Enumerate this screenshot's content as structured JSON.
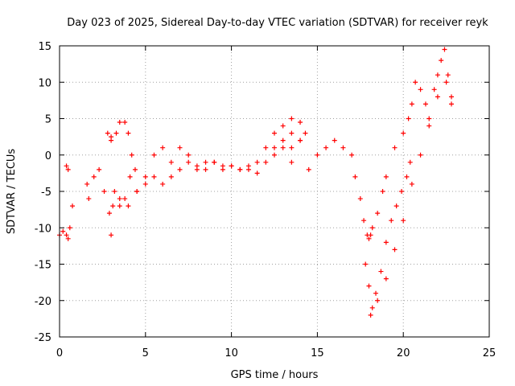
{
  "chart_data": {
    "type": "scatter",
    "title": "Day 023 of 2025, Sidereal Day-to-day VTEC variation (SDTVAR) for receiver reyk",
    "xlabel": "GPS time / hours",
    "ylabel": "SDTVAR / TECUs",
    "xlim": [
      0,
      25
    ],
    "ylim": [
      -25,
      15
    ],
    "x_ticks": [
      0,
      5,
      10,
      15,
      20,
      25
    ],
    "y_ticks": [
      -25,
      -20,
      -15,
      -10,
      -5,
      0,
      5,
      10,
      15
    ],
    "grid": true,
    "legend": "none",
    "marker": "+",
    "series": [
      {
        "name": "SDTVAR",
        "color": "#ff0000",
        "x": [
          0.0,
          0.2,
          0.4,
          0.5,
          0.6,
          0.75,
          0.4,
          0.5,
          1.6,
          1.7,
          2.0,
          2.3,
          2.6,
          2.9,
          3.0,
          3.1,
          3.0,
          2.8,
          3.0,
          3.3,
          3.5,
          3.8,
          4.0,
          4.2,
          4.4,
          4.1,
          3.8,
          3.5,
          3.2,
          3.5,
          4.0,
          4.5,
          5.0,
          5.5,
          6.0,
          6.5,
          7.0,
          7.5,
          8.0,
          8.5,
          9.0,
          9.5,
          10.0,
          10.5,
          11.0,
          11.5,
          12.0,
          12.5,
          13.0,
          13.5,
          14.0,
          14.3,
          14.0,
          13.5,
          13.0,
          12.5,
          13.5,
          14.5,
          15.0,
          15.5,
          16.0,
          16.5,
          17.0,
          17.2,
          17.5,
          17.7,
          17.9,
          18.0,
          18.1,
          18.2,
          18.5,
          18.8,
          19.0,
          19.5,
          20.0,
          20.3,
          20.5,
          20.7,
          21.0,
          21.3,
          21.5,
          21.8,
          22.0,
          22.2,
          22.4,
          22.6,
          22.8,
          18.0,
          18.2,
          18.5,
          19.0,
          19.5,
          20.0,
          20.5,
          21.0,
          21.5,
          22.0,
          22.5,
          22.8,
          4.5,
          5.0,
          5.5,
          6.0,
          6.5,
          7.0,
          7.5,
          8.0,
          8.5,
          9.0,
          9.5,
          10.0,
          10.5,
          11.0,
          11.5,
          12.0,
          12.5,
          13.0,
          13.5,
          14.0,
          17.8,
          18.1,
          18.4,
          18.7,
          19.0,
          19.3,
          19.6,
          19.9,
          20.2,
          20.4
        ],
        "y": [
          -11,
          -10.5,
          -11,
          -11.5,
          -10,
          -7,
          -1.5,
          -2,
          -4,
          -6,
          -3,
          -2,
          -5,
          -8,
          -11,
          -7,
          2,
          3,
          2.5,
          3,
          4.5,
          4.5,
          3,
          0,
          -2,
          -3,
          -6,
          -7,
          -5,
          -6,
          -7,
          -5,
          -3,
          0,
          1,
          -1,
          1,
          0,
          -2,
          -1,
          -1,
          -1.5,
          -1.5,
          -2,
          -2,
          -1,
          1,
          3,
          4,
          5,
          4.5,
          3,
          2,
          1,
          1,
          0,
          -1,
          -2,
          0,
          1,
          2,
          1,
          0,
          -3,
          -6,
          -9,
          -11,
          -11.5,
          -11,
          -10,
          -8,
          -5,
          -3,
          1,
          3,
          5,
          7,
          10,
          9,
          7,
          5,
          9,
          11,
          13,
          14.5,
          11,
          7,
          -18,
          -21,
          -20,
          -17,
          -13,
          -9,
          -4,
          0,
          4,
          8,
          10,
          8,
          -5,
          -4,
          -3,
          -4,
          -3,
          -2,
          -1,
          -1.5,
          -2,
          -1,
          -2,
          -1.5,
          -2,
          -1.5,
          -2.5,
          -1,
          1,
          2,
          3,
          2,
          -15,
          -22,
          -19,
          -16,
          -12,
          -9,
          -7,
          -5,
          -3,
          -1
        ]
      }
    ]
  }
}
